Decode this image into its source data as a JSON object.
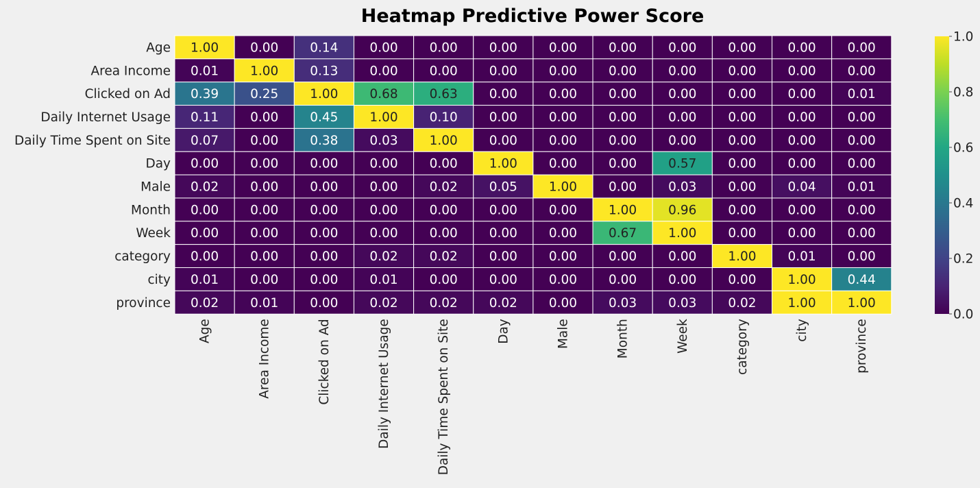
{
  "chart_data": {
    "type": "heatmap",
    "title": "Heatmap Predictive Power Score",
    "row_labels": [
      "Age",
      "Area Income",
      "Clicked on Ad",
      "Daily Internet Usage",
      "Daily Time Spent on Site",
      "Day",
      "Male",
      "Month",
      "Week",
      "category",
      "city",
      "province"
    ],
    "col_labels": [
      "Age",
      "Area Income",
      "Clicked on Ad",
      "Daily Internet Usage",
      "Daily Time Spent on Site",
      "Day",
      "Male",
      "Month",
      "Week",
      "category",
      "city",
      "province"
    ],
    "values": [
      [
        1.0,
        0.0,
        0.14,
        0.0,
        0.0,
        0.0,
        0.0,
        0.0,
        0.0,
        0.0,
        0.0,
        0.0
      ],
      [
        0.01,
        1.0,
        0.13,
        0.0,
        0.0,
        0.0,
        0.0,
        0.0,
        0.0,
        0.0,
        0.0,
        0.0
      ],
      [
        0.39,
        0.25,
        1.0,
        0.68,
        0.63,
        0.0,
        0.0,
        0.0,
        0.0,
        0.0,
        0.0,
        0.01
      ],
      [
        0.11,
        0.0,
        0.45,
        1.0,
        0.1,
        0.0,
        0.0,
        0.0,
        0.0,
        0.0,
        0.0,
        0.0
      ],
      [
        0.07,
        0.0,
        0.38,
        0.03,
        1.0,
        0.0,
        0.0,
        0.0,
        0.0,
        0.0,
        0.0,
        0.0
      ],
      [
        0.0,
        0.0,
        0.0,
        0.0,
        0.0,
        1.0,
        0.0,
        0.0,
        0.57,
        0.0,
        0.0,
        0.0
      ],
      [
        0.02,
        0.0,
        0.0,
        0.0,
        0.02,
        0.05,
        1.0,
        0.0,
        0.03,
        0.0,
        0.04,
        0.01
      ],
      [
        0.0,
        0.0,
        0.0,
        0.0,
        0.0,
        0.0,
        0.0,
        1.0,
        0.96,
        0.0,
        0.0,
        0.0
      ],
      [
        0.0,
        0.0,
        0.0,
        0.0,
        0.0,
        0.0,
        0.0,
        0.67,
        1.0,
        0.0,
        0.0,
        0.0
      ],
      [
        0.0,
        0.0,
        0.0,
        0.02,
        0.02,
        0.0,
        0.0,
        0.0,
        0.0,
        1.0,
        0.01,
        0.0
      ],
      [
        0.01,
        0.0,
        0.0,
        0.01,
        0.0,
        0.0,
        0.0,
        0.0,
        0.0,
        0.0,
        1.0,
        0.44
      ],
      [
        0.02,
        0.01,
        0.0,
        0.02,
        0.02,
        0.02,
        0.0,
        0.03,
        0.03,
        0.02,
        1.0,
        1.0
      ]
    ],
    "colormap": "viridis",
    "vmin": 0.0,
    "vmax": 1.0,
    "colorbar_ticks": [
      "0.0",
      "0.2",
      "0.4",
      "0.6",
      "0.8",
      "1.0"
    ],
    "annotation_format": "2 decimals"
  },
  "colors": {
    "background": "#f0f0f0",
    "cell_border": "#ffffff",
    "text_dark": "#222222",
    "text_light": "#ffffff"
  }
}
